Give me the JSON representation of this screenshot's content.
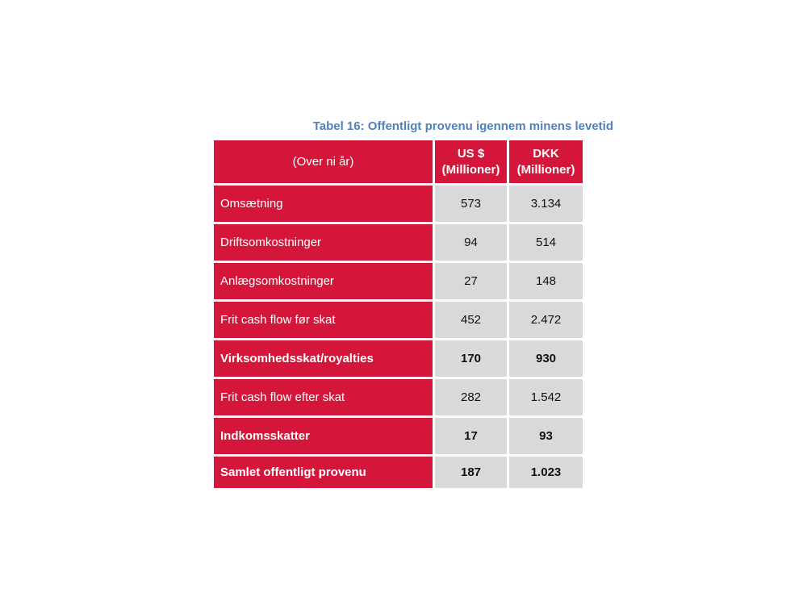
{
  "caption": "Tabel 16: Offentligt provenu igennem minens levetid",
  "header": {
    "label": "(Over ni år)",
    "col1_line1": "US $",
    "col1_line2": "(Millioner)",
    "col2_line1": "DKK",
    "col2_line2": "(Millioner)"
  },
  "rows": [
    {
      "label": "Omsætning",
      "usd": "573",
      "dkk": "3.134"
    },
    {
      "label": "Driftsomkostninger",
      "usd": "94",
      "dkk": "514"
    },
    {
      "label": "Anlægsomkostninger",
      "usd": "27",
      "dkk": "148"
    },
    {
      "label": "Frit cash flow før skat",
      "usd": "452",
      "dkk": "2.472"
    },
    {
      "label": "Virksomhedsskat/royalties",
      "usd": "170",
      "dkk": "930"
    },
    {
      "label": "Frit cash flow efter skat",
      "usd": "282",
      "dkk": "1.542"
    },
    {
      "label": "Indkomsskatter",
      "usd": "17",
      "dkk": "93"
    },
    {
      "label": "Samlet offentligt provenu",
      "usd": "187",
      "dkk": "1.023"
    }
  ]
}
